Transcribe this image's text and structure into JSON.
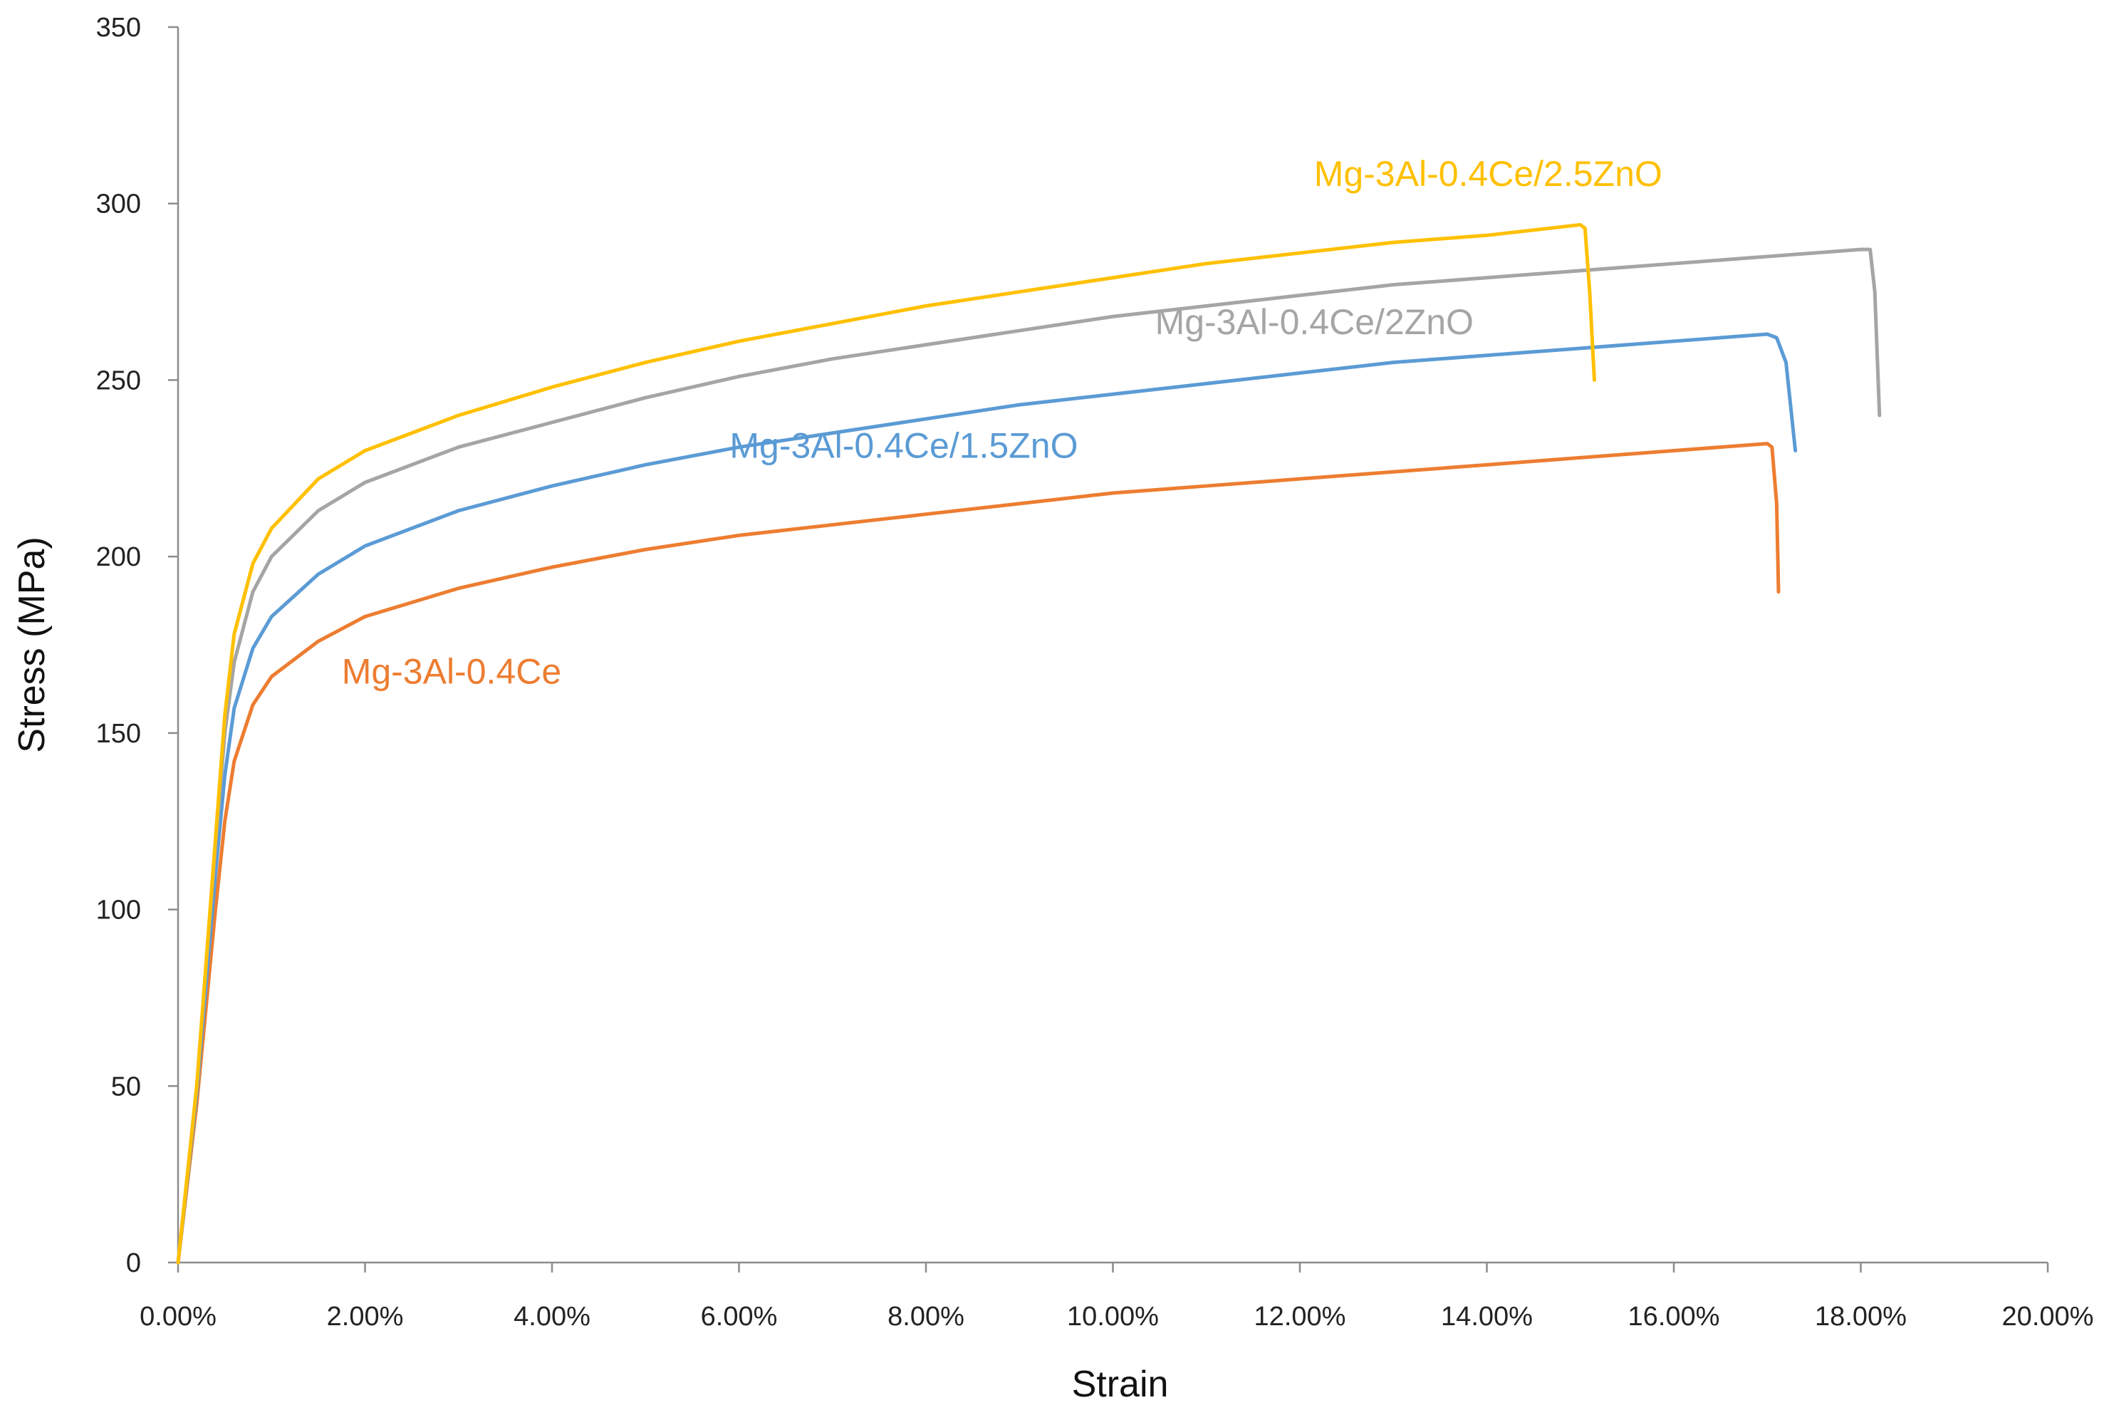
{
  "chart_data": {
    "type": "line",
    "xlabel": "Strain",
    "ylabel": "Stress (MPa)",
    "xlim": [
      0,
      0.2
    ],
    "ylim": [
      0,
      350
    ],
    "x_tick_values": [
      0,
      0.02,
      0.04,
      0.06,
      0.08,
      0.1,
      0.12,
      0.14,
      0.16,
      0.18,
      0.2
    ],
    "x_tick_labels": [
      "0.00%",
      "2.00%",
      "4.00%",
      "6.00%",
      "8.00%",
      "10.00%",
      "12.00%",
      "14.00%",
      "16.00%",
      "18.00%",
      "20.00%"
    ],
    "y_tick_values": [
      0,
      50,
      100,
      150,
      200,
      250,
      300,
      350
    ],
    "y_tick_labels": [
      "0",
      "50",
      "100",
      "150",
      "200",
      "250",
      "300",
      "350"
    ],
    "grid": false,
    "legend": "none (inline labels)",
    "series": [
      {
        "name": "Mg-3Al-0.4Ce",
        "color": "#ED7D31",
        "points": [
          [
            0,
            0
          ],
          [
            0.002,
            45
          ],
          [
            0.004,
            100
          ],
          [
            0.005,
            125
          ],
          [
            0.006,
            142
          ],
          [
            0.008,
            158
          ],
          [
            0.01,
            166
          ],
          [
            0.015,
            176
          ],
          [
            0.02,
            183
          ],
          [
            0.03,
            191
          ],
          [
            0.04,
            197
          ],
          [
            0.05,
            202
          ],
          [
            0.06,
            206
          ],
          [
            0.07,
            209
          ],
          [
            0.08,
            212
          ],
          [
            0.09,
            215
          ],
          [
            0.1,
            218
          ],
          [
            0.11,
            220
          ],
          [
            0.12,
            222
          ],
          [
            0.13,
            224
          ],
          [
            0.14,
            226
          ],
          [
            0.15,
            228
          ],
          [
            0.16,
            230
          ],
          [
            0.17,
            232
          ],
          [
            0.1705,
            231
          ],
          [
            0.171,
            215
          ],
          [
            0.1712,
            190
          ]
        ]
      },
      {
        "name": "Mg-3Al-0.4Ce/1.5ZnO",
        "color": "#5B9BD5",
        "points": [
          [
            0,
            0
          ],
          [
            0.002,
            48
          ],
          [
            0.004,
            110
          ],
          [
            0.005,
            138
          ],
          [
            0.006,
            157
          ],
          [
            0.008,
            174
          ],
          [
            0.01,
            183
          ],
          [
            0.015,
            195
          ],
          [
            0.02,
            203
          ],
          [
            0.03,
            213
          ],
          [
            0.04,
            220
          ],
          [
            0.05,
            226
          ],
          [
            0.06,
            231
          ],
          [
            0.07,
            235
          ],
          [
            0.08,
            239
          ],
          [
            0.09,
            243
          ],
          [
            0.1,
            246
          ],
          [
            0.11,
            249
          ],
          [
            0.12,
            252
          ],
          [
            0.13,
            255
          ],
          [
            0.14,
            257
          ],
          [
            0.15,
            259
          ],
          [
            0.16,
            261
          ],
          [
            0.17,
            263
          ],
          [
            0.171,
            262
          ],
          [
            0.172,
            255
          ],
          [
            0.173,
            230
          ]
        ]
      },
      {
        "name": "Mg-3Al-0.4Ce/2ZnO",
        "color": "#A5A5A5",
        "points": [
          [
            0,
            0
          ],
          [
            0.002,
            50
          ],
          [
            0.004,
            118
          ],
          [
            0.005,
            150
          ],
          [
            0.006,
            170
          ],
          [
            0.008,
            190
          ],
          [
            0.01,
            200
          ],
          [
            0.015,
            213
          ],
          [
            0.02,
            221
          ],
          [
            0.03,
            231
          ],
          [
            0.04,
            238
          ],
          [
            0.05,
            245
          ],
          [
            0.06,
            251
          ],
          [
            0.07,
            256
          ],
          [
            0.08,
            260
          ],
          [
            0.09,
            264
          ],
          [
            0.1,
            268
          ],
          [
            0.11,
            271
          ],
          [
            0.12,
            274
          ],
          [
            0.13,
            277
          ],
          [
            0.14,
            279
          ],
          [
            0.15,
            281
          ],
          [
            0.16,
            283
          ],
          [
            0.17,
            285
          ],
          [
            0.18,
            287
          ],
          [
            0.181,
            287
          ],
          [
            0.1815,
            275
          ],
          [
            0.182,
            240
          ]
        ]
      },
      {
        "name": "Mg-3Al-0.4Ce/2.5ZnO",
        "color": "#FFC000",
        "points": [
          [
            0,
            0
          ],
          [
            0.002,
            50
          ],
          [
            0.004,
            120
          ],
          [
            0.005,
            155
          ],
          [
            0.006,
            178
          ],
          [
            0.008,
            198
          ],
          [
            0.01,
            208
          ],
          [
            0.015,
            222
          ],
          [
            0.02,
            230
          ],
          [
            0.03,
            240
          ],
          [
            0.04,
            248
          ],
          [
            0.05,
            255
          ],
          [
            0.06,
            261
          ],
          [
            0.07,
            266
          ],
          [
            0.08,
            271
          ],
          [
            0.09,
            275
          ],
          [
            0.1,
            279
          ],
          [
            0.11,
            283
          ],
          [
            0.12,
            286
          ],
          [
            0.13,
            289
          ],
          [
            0.14,
            291
          ],
          [
            0.15,
            294
          ],
          [
            0.1505,
            293
          ],
          [
            0.151,
            275
          ],
          [
            0.1515,
            250
          ]
        ]
      }
    ]
  }
}
